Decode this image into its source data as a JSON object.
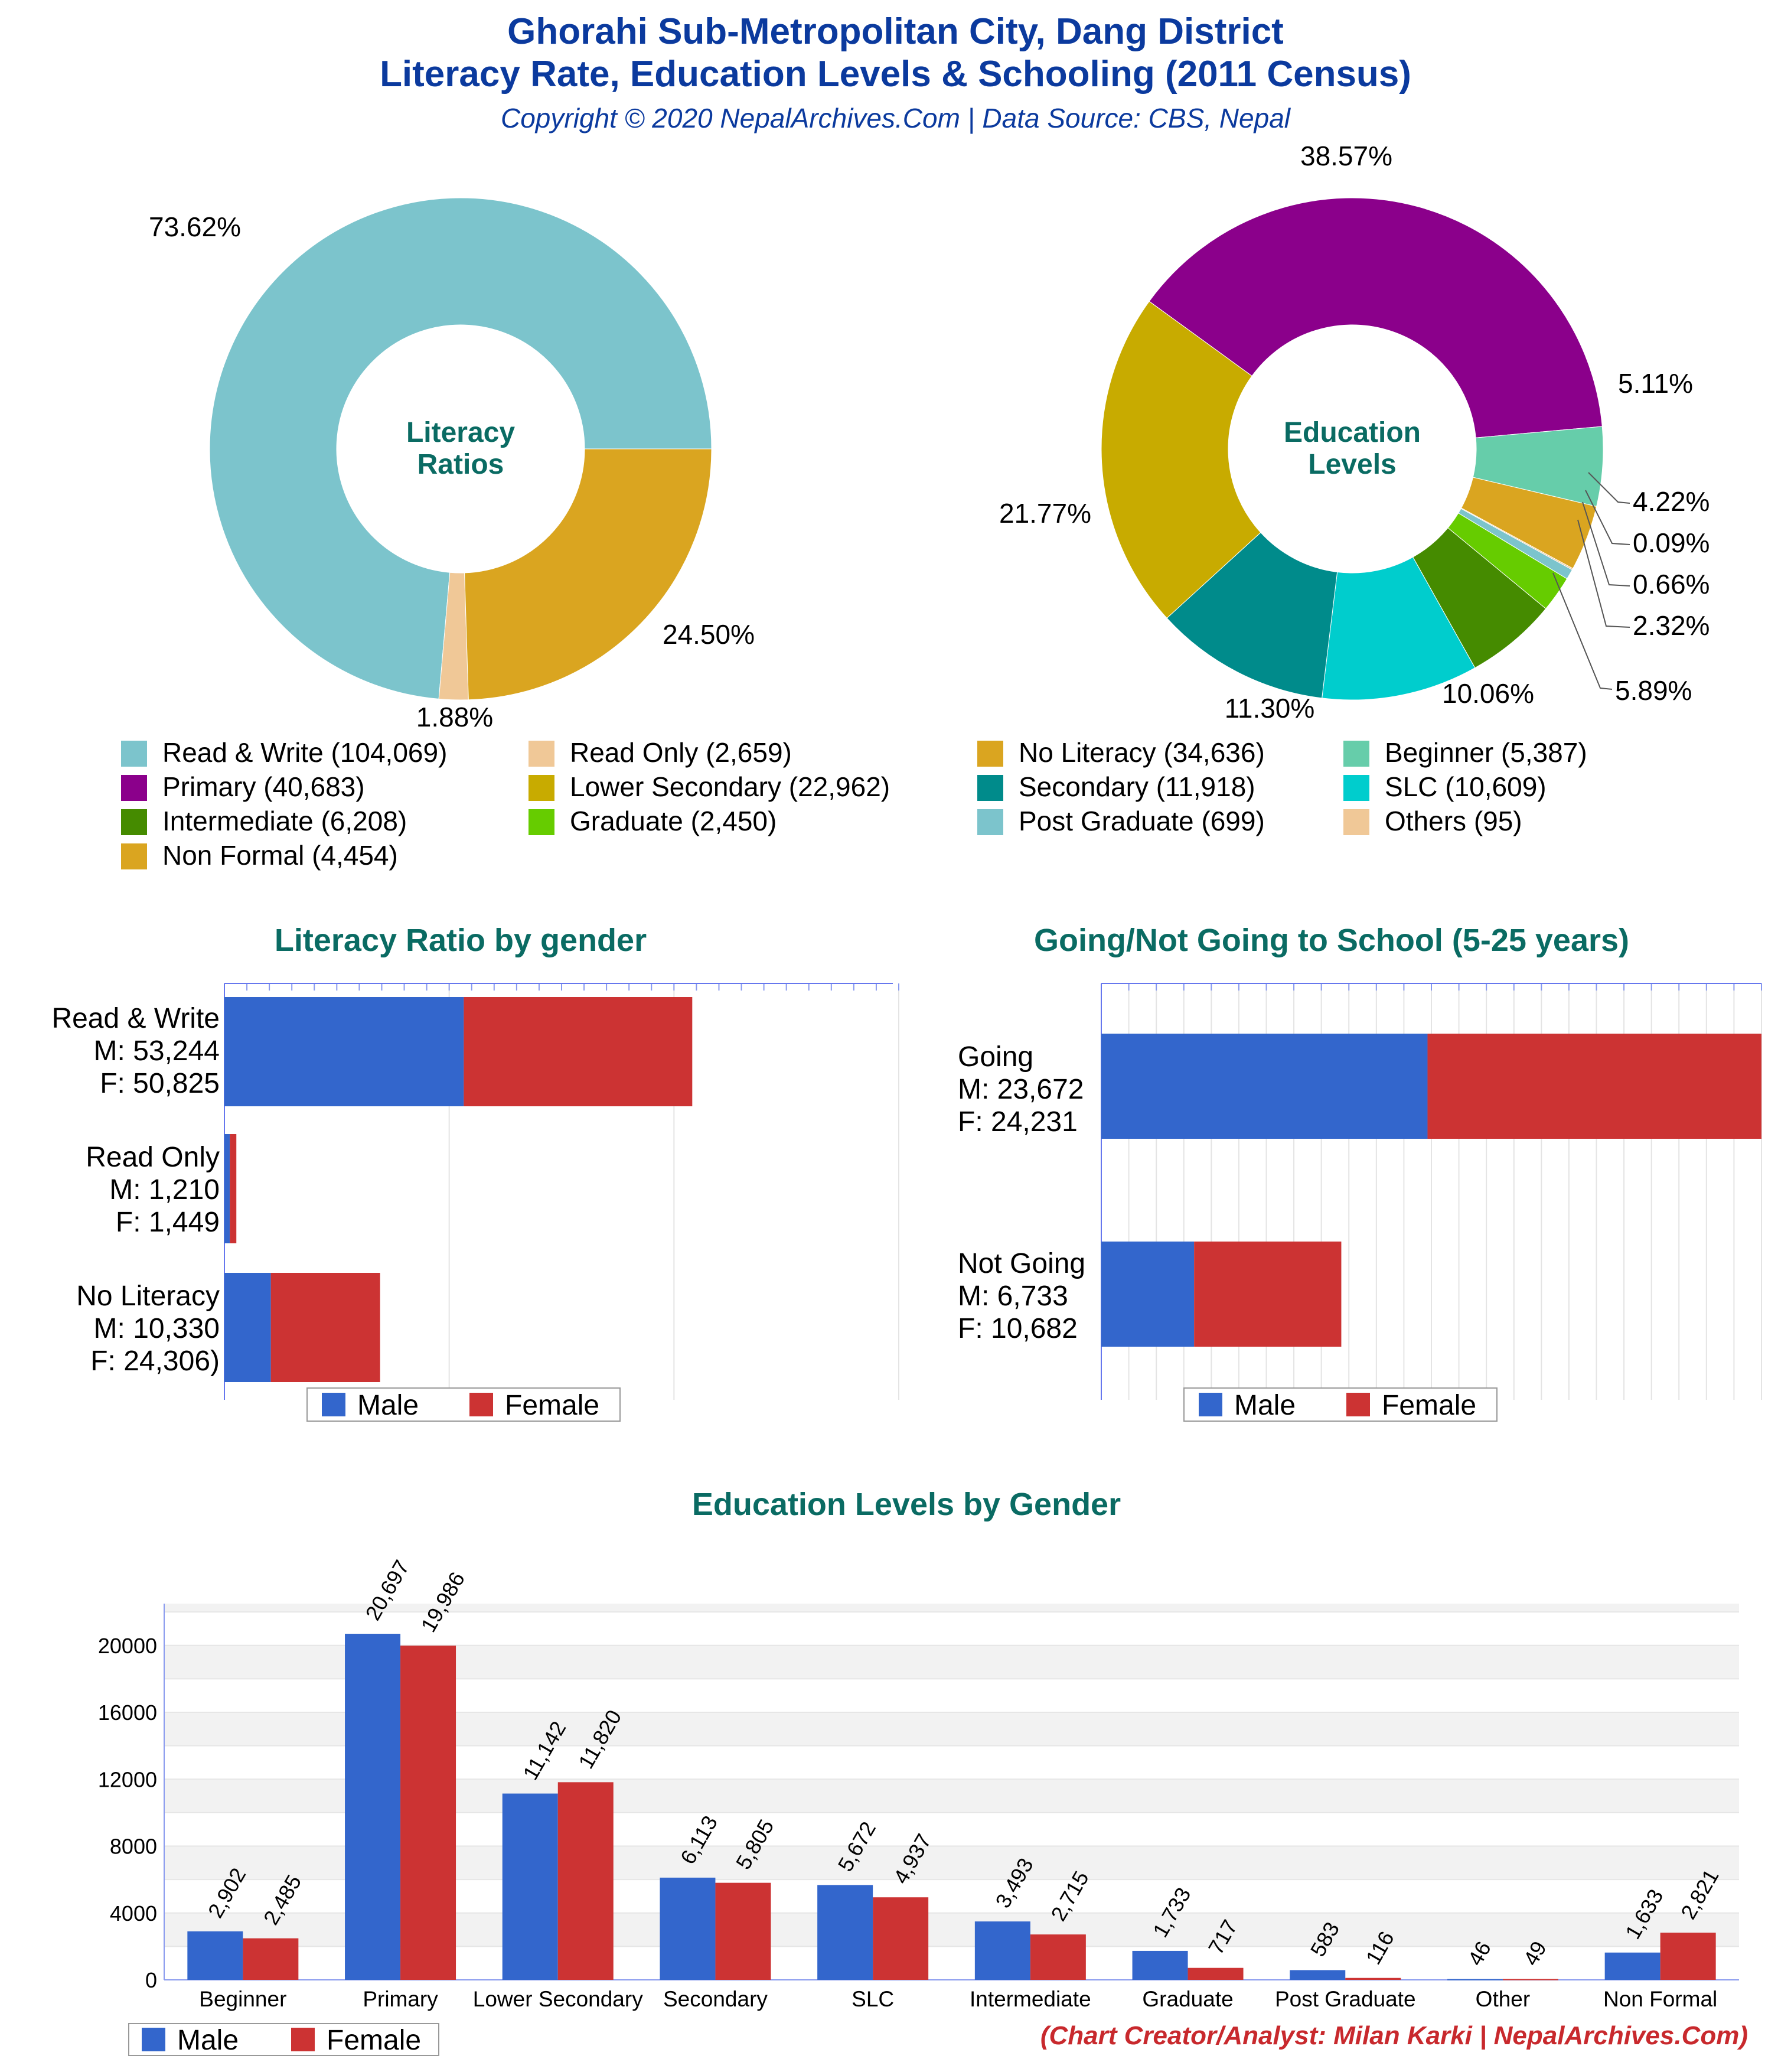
{
  "header": {
    "title_line1": "Ghorahi Sub-Metropolitan City, Dang District",
    "title_line2": "Literacy Rate, Education Levels & Schooling (2011 Census)",
    "copyright": "Copyright © 2020 NepalArchives.Com | Data Source: CBS, Nepal"
  },
  "credit": "(Chart Creator/Analyst: Milan Karki | NepalArchives.Com)",
  "colors": {
    "male": "#3366cc",
    "female": "#cc3333",
    "title_teal": "#0a6b63",
    "header_blue": "#0b3a9e"
  },
  "chart_data": [
    {
      "type": "pie",
      "donut": true,
      "center_label": [
        "Literacy",
        "Ratios"
      ],
      "slices": [
        {
          "label": "Read & Write",
          "value": 104069,
          "percent": "73.62%",
          "color": "#7cc4cc"
        },
        {
          "label": "Read Only",
          "value": 2659,
          "percent": "1.88%",
          "color": "#f0c897"
        },
        {
          "label": "No Literacy",
          "value": 34636,
          "percent": "24.50%",
          "color": "#daa520"
        }
      ]
    },
    {
      "type": "pie",
      "donut": true,
      "center_label": [
        "Education",
        "Levels"
      ],
      "slices": [
        {
          "label": "Primary",
          "value": 40683,
          "percent": "38.57%",
          "color": "#8b008b"
        },
        {
          "label": "Beginner",
          "value": 5387,
          "percent": "5.11%",
          "color": "#66cdaa"
        },
        {
          "label": "Non Formal",
          "value": 4454,
          "percent": "4.22%",
          "color": "#daa520"
        },
        {
          "label": "Others",
          "value": 95,
          "percent": "0.09%",
          "color": "#f0c897"
        },
        {
          "label": "Post Graduate",
          "value": 699,
          "percent": "0.66%",
          "color": "#7cc4cc"
        },
        {
          "label": "Graduate",
          "value": 2450,
          "percent": "2.32%",
          "color": "#66cc00"
        },
        {
          "label": "Intermediate",
          "value": 6208,
          "percent": "5.89%",
          "color": "#458b00"
        },
        {
          "label": "SLC",
          "value": 10609,
          "percent": "10.06%",
          "color": "#00cdcd"
        },
        {
          "label": "Secondary",
          "value": 11918,
          "percent": "11.30%",
          "color": "#008b8b"
        },
        {
          "label": "Lower Secondary",
          "value": 22962,
          "percent": "21.77%",
          "color": "#c8ab00"
        }
      ],
      "legend": [
        {
          "text": "Read & Write (104,069)",
          "color": "#7cc4cc"
        },
        {
          "text": "Read Only (2,659)",
          "color": "#f0c897"
        },
        {
          "text": "No Literacy (34,636)",
          "color": "#daa520"
        },
        {
          "text": "Beginner (5,387)",
          "color": "#66cdaa"
        },
        {
          "text": "Primary (40,683)",
          "color": "#8b008b"
        },
        {
          "text": "Lower Secondary (22,962)",
          "color": "#c8ab00"
        },
        {
          "text": "Secondary (11,918)",
          "color": "#008b8b"
        },
        {
          "text": "SLC (10,609)",
          "color": "#00cdcd"
        },
        {
          "text": "Intermediate (6,208)",
          "color": "#458b00"
        },
        {
          "text": "Graduate (2,450)",
          "color": "#66cc00"
        },
        {
          "text": "Post Graduate (699)",
          "color": "#7cc4cc"
        },
        {
          "text": "Others (95)",
          "color": "#f0c897"
        },
        {
          "text": "Non Formal (4,454)",
          "color": "#daa520"
        }
      ]
    },
    {
      "type": "bar",
      "orientation": "horizontal",
      "stacked": true,
      "title": "Literacy Ratio by gender",
      "categories": [
        [
          "Read & Write",
          "M: 53,244",
          "F: 50,825"
        ],
        [
          "Read Only",
          "M: 1,210",
          "F: 1,449"
        ],
        [
          "No Literacy",
          "M: 10,330",
          "F: 24,306)"
        ]
      ],
      "series": [
        {
          "name": "Male",
          "values": [
            53244,
            1210,
            10330
          ]
        },
        {
          "name": "Female",
          "values": [
            50825,
            1449,
            24306
          ]
        }
      ],
      "xlim": [
        0,
        150000
      ],
      "legend_position": "bottom"
    },
    {
      "type": "bar",
      "orientation": "horizontal",
      "stacked": true,
      "title": "Going/Not Going to School (5-25 years)",
      "categories": [
        [
          "Going",
          "M: 23,672",
          "F: 24,231"
        ],
        [
          "Not Going",
          "M: 6,733",
          "F: 10,682"
        ]
      ],
      "series": [
        {
          "name": "Male",
          "values": [
            23672,
            6733
          ]
        },
        {
          "name": "Female",
          "values": [
            24231,
            10682
          ]
        }
      ],
      "xlim": [
        0,
        47903
      ],
      "legend_position": "bottom"
    },
    {
      "type": "bar",
      "orientation": "vertical",
      "title": "Education Levels by Gender",
      "categories": [
        "Beginner",
        "Primary",
        "Lower Secondary",
        "Secondary",
        "SLC",
        "Intermediate",
        "Graduate",
        "Post Graduate",
        "Other",
        "Non Formal"
      ],
      "series": [
        {
          "name": "Male",
          "values": [
            2902,
            20697,
            11142,
            6113,
            5672,
            3493,
            1733,
            583,
            46,
            1633
          ],
          "labels": [
            "2,902",
            "20,697",
            "11,142",
            "6,113",
            "5,672",
            "3,493",
            "1,733",
            "583",
            "46",
            "1,633"
          ]
        },
        {
          "name": "Female",
          "values": [
            2485,
            19986,
            11820,
            5805,
            4937,
            2715,
            717,
            116,
            49,
            2821
          ],
          "labels": [
            "2,485",
            "19,986",
            "11,820",
            "5,805",
            "4,937",
            "2,715",
            "717",
            "116",
            "49",
            "2,821"
          ]
        }
      ],
      "yticks": [
        "0",
        "4000",
        "8000",
        "12000",
        "16000",
        "20000"
      ],
      "ylim": [
        0,
        22500
      ],
      "legend_position": "bottom-left"
    }
  ]
}
